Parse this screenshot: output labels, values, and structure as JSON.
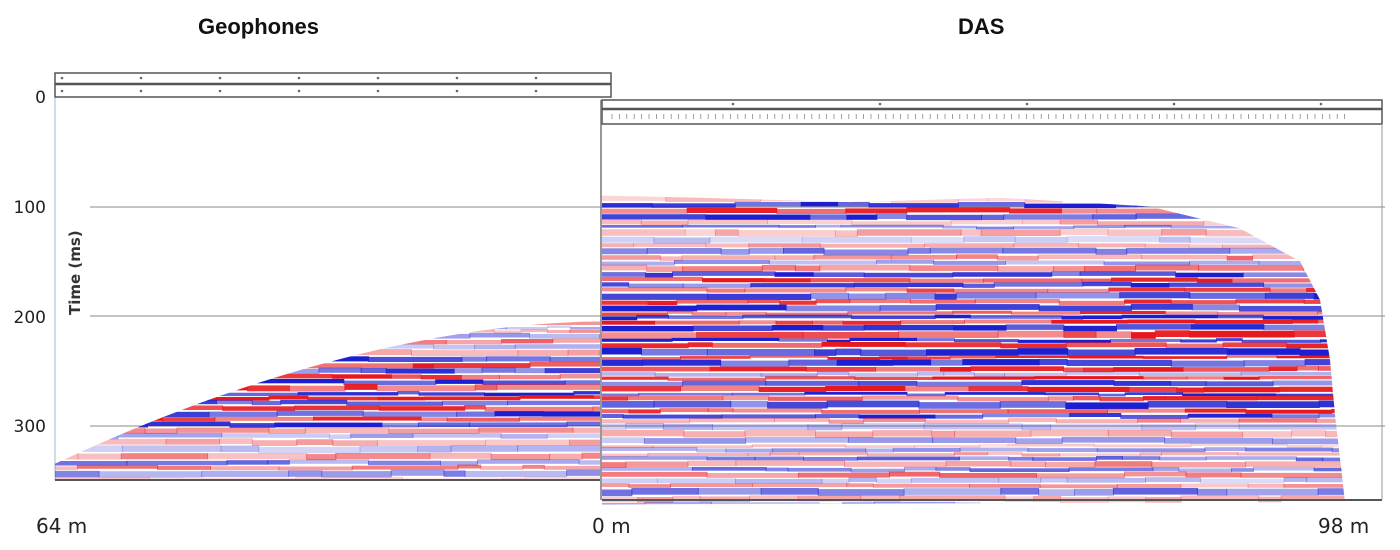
{
  "chart_data": {
    "type": "heatmap",
    "ylabel": "Time (ms)",
    "yticks": [
      0,
      100,
      200,
      300
    ],
    "panels": [
      {
        "name": "Geophones",
        "title": "Geophones",
        "distance_labels": [
          "64 m"
        ],
        "time_range_ms": [
          0,
          350
        ],
        "first_arrival_ms": {
          "near_offset": 205,
          "far_offset": 335
        }
      },
      {
        "name": "DAS",
        "title": "DAS",
        "distance_labels": [
          "0 m",
          "98 m"
        ],
        "time_range_ms": [
          0,
          370
        ],
        "first_arrival_ms": {
          "near_offset": 90,
          "far_offset": 120
        }
      }
    ],
    "colormap": {
      "positive": "#e8191e",
      "negative": "#1c1fd0",
      "zero": "#ffffff"
    }
  },
  "geophones": {
    "title": "Geophones",
    "distance_left": "64 m"
  },
  "das": {
    "title": "DAS",
    "distance_left": "0 m",
    "distance_right": "98 m"
  },
  "axis": {
    "ylabel": "Time (ms)",
    "ticks": [
      "0",
      "100",
      "200",
      "300"
    ]
  }
}
